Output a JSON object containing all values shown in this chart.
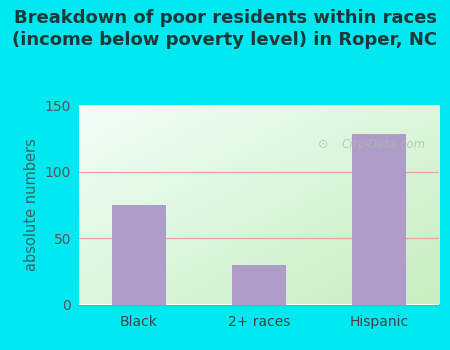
{
  "categories": [
    "Black",
    "2+ races",
    "Hispanic"
  ],
  "values": [
    75,
    30,
    128
  ],
  "bar_color": "#b09cc8",
  "title_line1": "Breakdown of poor residents within races",
  "title_line2": "(income below poverty level) in Roper, NC",
  "ylabel": "absolute numbers",
  "ylim": [
    0,
    150
  ],
  "yticks": [
    0,
    50,
    100,
    150
  ],
  "title_color": "#1a3a3a",
  "outer_bg_color": "#00e8f0",
  "plot_bg_left": "#c8eec0",
  "plot_bg_right": "#f0fff8",
  "grid_color": "#f0a0a0",
  "watermark": "City-Data.com",
  "title_fontsize": 13,
  "label_fontsize": 10.5,
  "tick_fontsize": 10,
  "bar_width": 0.45
}
